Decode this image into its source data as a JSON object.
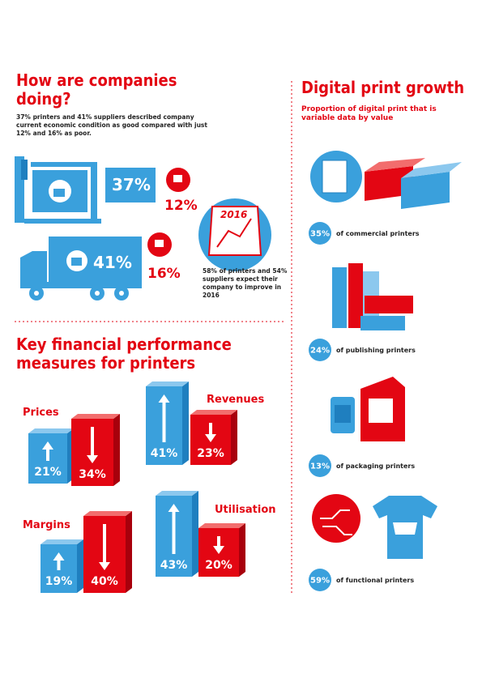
{
  "left": {
    "title": "How are companies doing?",
    "intro": "37% printers and 41% suppliers described company current economic condition as good compared with just 12% and 16% as poor.",
    "billboard": {
      "good": "37%",
      "poor": "12%"
    },
    "truck": {
      "good": "41%",
      "poor": "16%"
    },
    "calendar": {
      "year": "2016",
      "note": "58% of printers and 54% suppliers expect their company to improve in 2016"
    }
  },
  "measures": {
    "title": "Key financial performance measures for printers",
    "items": [
      {
        "label": "Prices",
        "up": "21%",
        "down": "34%"
      },
      {
        "label": "Revenues",
        "up": "41%",
        "down": "23%"
      },
      {
        "label": "Margins",
        "up": "19%",
        "down": "40%"
      },
      {
        "label": "Utilisation",
        "up": "43%",
        "down": "20%"
      }
    ]
  },
  "digital": {
    "title": "Digital print growth",
    "subtitle": "Proportion of digital print that is variable data by value",
    "items": [
      {
        "value": "35%",
        "label": "of commercial printers"
      },
      {
        "value": "24%",
        "label": "of publishing printers"
      },
      {
        "value": "13%",
        "label": "of packaging printers"
      },
      {
        "value": "59%",
        "label": "of functional printers"
      }
    ]
  }
}
